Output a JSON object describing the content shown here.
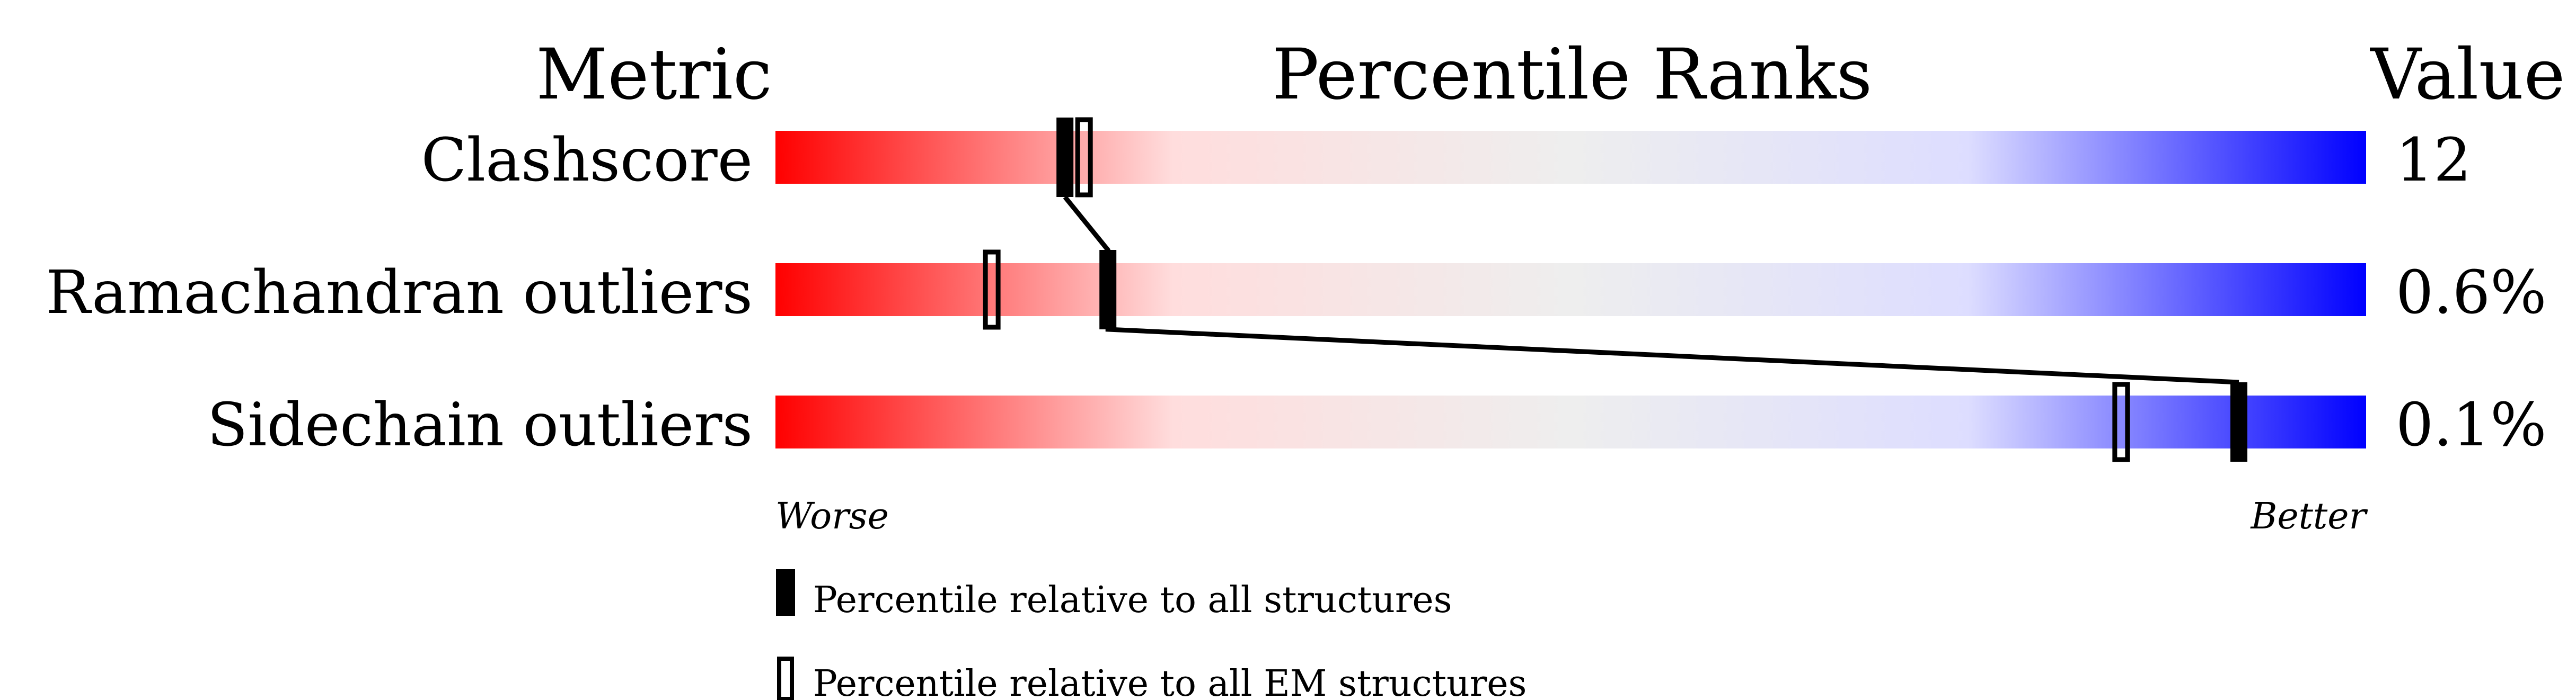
{
  "chart_data": {
    "type": "bar",
    "headers": {
      "metric": "Metric",
      "ranks": "Percentile Ranks",
      "value": "Value"
    },
    "xlim": [
      0,
      100
    ],
    "axis_labels": {
      "left": "Worse",
      "right": "Better"
    },
    "gradient_colors": [
      "#ff0000",
      "#ffdddd",
      "#eeeeee",
      "#ddddff",
      "#0000ff"
    ],
    "metrics": [
      {
        "name": "Clashscore",
        "value": "12",
        "percentile_all": 18.2,
        "percentile_em": 19.4
      },
      {
        "name": "Ramachandran outliers",
        "value": "0.6%",
        "percentile_all": 20.9,
        "percentile_em": 13.6
      },
      {
        "name": "Sidechain outliers",
        "value": "0.1%",
        "percentile_all": 92.0,
        "percentile_em": 84.6
      }
    ],
    "legend": [
      {
        "marker": "filled",
        "label": "Percentile relative to all structures"
      },
      {
        "marker": "open",
        "label": "Percentile relative to all EM structures"
      }
    ]
  }
}
